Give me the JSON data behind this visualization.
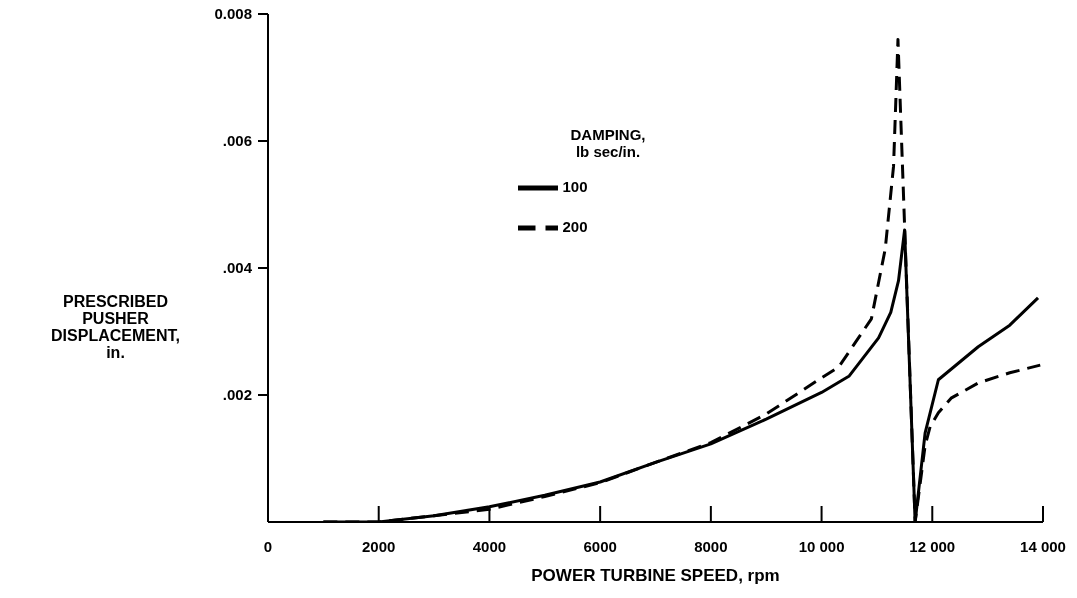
{
  "chart_data": {
    "type": "line",
    "xlabel": "POWER TURBINE SPEED, rpm",
    "ylabel": "PRESCRIBED PUSHER DISPLACEMENT, in.",
    "legend_title": "DAMPING,\nlb sec/in.",
    "legend": "top",
    "xlim": [
      0,
      14000
    ],
    "ylim": [
      0,
      0.008
    ],
    "xticks": [
      0,
      2000,
      4000,
      6000,
      8000,
      {
        "value": 10000,
        "label": "10 000"
      },
      {
        "value": 12000,
        "label": "12 000"
      },
      {
        "value": 14000,
        "label": "14 000"
      }
    ],
    "yticks": [
      {
        "value": 0.002,
        "label": ".002"
      },
      {
        "value": 0.004,
        "label": ".004"
      },
      {
        "value": 0.006,
        "label": ".006"
      },
      {
        "value": 0.008,
        "label": "0.008"
      }
    ],
    "series": [
      {
        "name": "100",
        "color": "#000000",
        "line_style": "solid",
        "x": [
          1000,
          2000,
          3000,
          4000,
          5000,
          6000,
          7000,
          8000,
          9000,
          10000,
          10500,
          11030,
          11250,
          11390,
          11500,
          11690,
          11870,
          12110,
          12470,
          12830,
          13400,
          13910
        ],
        "values": [
          0,
          0,
          0.0001,
          0.00024,
          0.00042,
          0.00063,
          0.00094,
          0.00123,
          0.00162,
          0.00204,
          0.0023,
          0.0029,
          0.0033,
          0.0038,
          0.0046,
          0,
          0.0014,
          0.00224,
          0.0025,
          0.00276,
          0.0031,
          0.00353
        ]
      },
      {
        "name": "200",
        "color": "#000000",
        "line_style": "dashed",
        "x": [
          1000,
          2000,
          3000,
          4000,
          5000,
          6000,
          7000,
          8000,
          9000,
          10000,
          10310,
          10900,
          11150,
          11300,
          11380,
          11690,
          11870,
          11960,
          12110,
          12340,
          12830,
          13400,
          13950
        ],
        "values": [
          0,
          0,
          0.0001,
          0.0002,
          0.0004,
          0.00062,
          0.00094,
          0.00125,
          0.0017,
          0.00227,
          0.00244,
          0.0032,
          0.0043,
          0.0056,
          0.0076,
          0,
          0.0012,
          0.0015,
          0.00172,
          0.00195,
          0.00219,
          0.00235,
          0.00247
        ]
      }
    ]
  }
}
